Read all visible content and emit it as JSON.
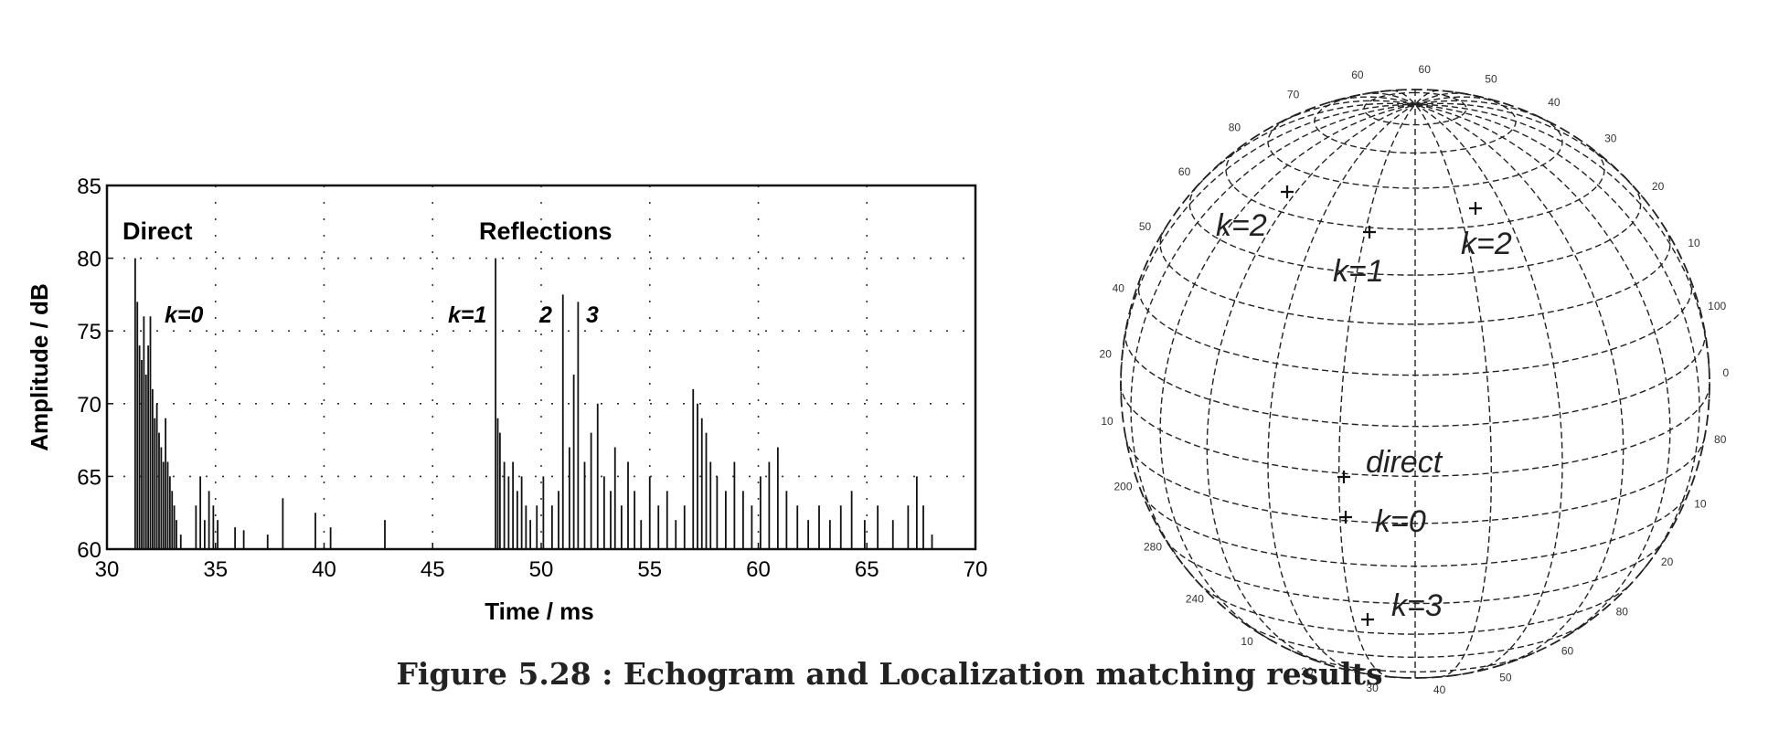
{
  "caption": "Figure 5.28 : Echogram and Localization matching results",
  "chart_data": [
    {
      "type": "bar",
      "title": "",
      "xlabel": "Time / ms",
      "ylabel": "Amplitude / dB",
      "xlim": [
        30,
        70
      ],
      "ylim": [
        60,
        85
      ],
      "xticks": [
        "30",
        "35",
        "40",
        "45",
        "50",
        "55",
        "60",
        "65",
        "70"
      ],
      "yticks": [
        "60",
        "65",
        "70",
        "75",
        "80",
        "85"
      ],
      "grid": true,
      "annotations": [
        "Direct",
        "Reflections",
        "k=0",
        "k=1",
        "2",
        "3"
      ],
      "series": [
        {
          "x": [
            31.3,
            31.4,
            31.5,
            31.6,
            31.7,
            31.8,
            31.9,
            32.0,
            32.1,
            32.2,
            32.3,
            32.4,
            32.5,
            32.6,
            32.7,
            32.8,
            32.9,
            33.0,
            33.1,
            33.2,
            33.4,
            34.1,
            34.3,
            34.5,
            34.7,
            34.9,
            35.1,
            35.9,
            36.3,
            37.4,
            38.1,
            39.6,
            40.3,
            42.8,
            47.9,
            48.0,
            48.1,
            48.3,
            48.5,
            48.7,
            48.9,
            49.1,
            49.3,
            49.5,
            49.8,
            50.1,
            50.5,
            50.8,
            51.0,
            51.3,
            51.5,
            51.7,
            52.0,
            52.3,
            52.6,
            52.9,
            53.2,
            53.4,
            53.7,
            54.0,
            54.3,
            54.6,
            55.0,
            55.4,
            55.8,
            56.2,
            56.6,
            57.0,
            57.2,
            57.4,
            57.6,
            57.8,
            58.1,
            58.5,
            58.9,
            59.3,
            59.7,
            60.1,
            60.5,
            60.9,
            61.3,
            61.8,
            62.3,
            62.8,
            63.3,
            63.8,
            64.3,
            64.9,
            65.5,
            66.2,
            66.9,
            67.3,
            67.6,
            68.0
          ],
          "values": [
            80,
            77,
            74,
            73,
            76,
            72,
            74,
            76,
            71,
            69,
            70,
            68,
            67,
            66,
            69,
            66,
            65,
            64,
            63,
            62,
            61,
            63,
            65,
            62,
            64,
            63,
            62,
            61.5,
            61.3,
            61,
            63.5,
            62.5,
            61.5,
            62,
            80,
            69,
            68,
            66,
            65,
            66,
            64,
            65,
            63,
            62,
            63,
            65,
            63,
            64,
            77.5,
            67,
            72,
            77,
            66,
            68,
            70,
            65,
            64,
            67,
            63,
            66,
            64,
            62,
            65,
            63,
            64,
            62,
            63,
            71,
            70,
            69,
            68,
            66,
            65,
            64,
            66,
            64,
            63,
            65,
            66,
            67,
            64,
            63,
            62,
            63,
            62,
            63,
            64,
            62,
            63,
            62,
            63,
            65,
            63,
            61
          ]
        }
      ]
    },
    {
      "type": "other",
      "title": "",
      "annotations": [
        "k=2",
        "k=1",
        "k=2",
        "direct",
        "k=0",
        "k=3"
      ],
      "scale_labels": [
        "80",
        "70",
        "60",
        "60",
        "50",
        "40",
        "30",
        "20",
        "10",
        "100",
        "0",
        "80",
        "10",
        "20",
        "80",
        "60",
        "50",
        "40",
        "30",
        "20",
        "10",
        "240",
        "280",
        "200",
        "10",
        "20",
        "40",
        "50",
        "60"
      ]
    }
  ]
}
